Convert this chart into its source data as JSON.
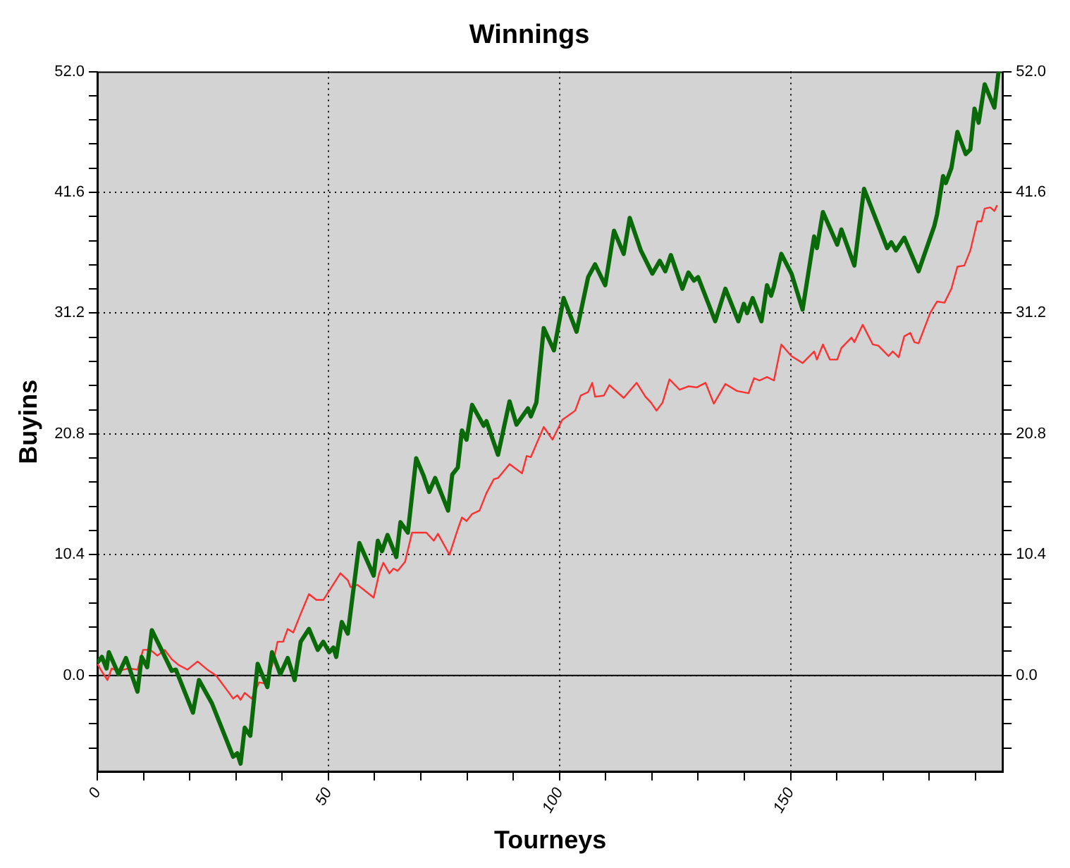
{
  "chart_data": {
    "type": "line",
    "title": "Winnings",
    "xlabel": "Tourneys",
    "ylabel": "Buyins",
    "xlim": [
      0,
      196
    ],
    "xticks": [
      0,
      {
        "value": 10,
        "label": null
      },
      {
        "value": 20,
        "label": null
      },
      {
        "value": 30,
        "label": null
      },
      {
        "value": 40,
        "label": null
      },
      50,
      {
        "value": 60,
        "label": null
      },
      {
        "value": 70,
        "label": null
      },
      {
        "value": 80,
        "label": null
      },
      {
        "value": 90,
        "label": null
      },
      100,
      {
        "value": 110,
        "label": null
      },
      {
        "value": 120,
        "label": null
      },
      {
        "value": 130,
        "label": null
      },
      {
        "value": 140,
        "label": null
      },
      150,
      {
        "value": 160,
        "label": null
      },
      {
        "value": 170,
        "label": null
      },
      {
        "value": 180,
        "label": null
      },
      {
        "value": 190,
        "label": null
      }
    ],
    "ylim": [
      -8.32,
      52
    ],
    "yticks": [
      {
        "value": -6.24,
        "label": null
      },
      {
        "value": -4.16,
        "label": null
      },
      {
        "value": -2.08,
        "label": null
      },
      {
        "value": 0,
        "label": "0.0"
      },
      {
        "value": 2.08,
        "label": null
      },
      {
        "value": 4.16,
        "label": null
      },
      {
        "value": 6.24,
        "label": null
      },
      {
        "value": 8.32,
        "label": null
      },
      10.4,
      {
        "value": 12.48,
        "label": null
      },
      {
        "value": 14.56,
        "label": null
      },
      {
        "value": 16.64,
        "label": null
      },
      {
        "value": 18.72,
        "label": null
      },
      20.8,
      {
        "value": 22.88,
        "label": null
      },
      {
        "value": 24.96,
        "label": null
      },
      {
        "value": 27.04,
        "label": null
      },
      {
        "value": 29.12,
        "label": null
      },
      31.2,
      {
        "value": 33.28,
        "label": null
      },
      {
        "value": 35.36,
        "label": null
      },
      {
        "value": 37.44,
        "label": null
      },
      {
        "value": 39.52,
        "label": null
      },
      41.6,
      {
        "value": 43.68,
        "label": null
      },
      {
        "value": 45.76,
        "label": null
      },
      {
        "value": 47.84,
        "label": null
      },
      {
        "value": 49.92,
        "label": null
      },
      {
        "value": 52,
        "label": "52.0"
      }
    ],
    "y2lim": [
      -8.32,
      52
    ],
    "y2ticks": [
      {
        "value": -6.24,
        "label": null
      },
      {
        "value": -4.16,
        "label": null
      },
      {
        "value": -2.08,
        "label": null
      },
      {
        "value": 0,
        "label": "0.0"
      },
      {
        "value": 2.08,
        "label": null
      },
      {
        "value": 4.16,
        "label": null
      },
      {
        "value": 6.24,
        "label": null
      },
      {
        "value": 8.32,
        "label": null
      },
      10.4,
      {
        "value": 12.48,
        "label": null
      },
      {
        "value": 14.56,
        "label": null
      },
      {
        "value": 16.64,
        "label": null
      },
      {
        "value": 18.72,
        "label": null
      },
      20.8,
      {
        "value": 22.88,
        "label": null
      },
      {
        "value": 24.96,
        "label": null
      },
      {
        "value": 27.04,
        "label": null
      },
      {
        "value": 29.12,
        "label": null
      },
      31.2,
      {
        "value": 33.28,
        "label": null
      },
      {
        "value": 35.36,
        "label": null
      },
      {
        "value": 37.44,
        "label": null
      },
      {
        "value": 39.52,
        "label": null
      },
      41.6,
      {
        "value": 43.68,
        "label": null
      },
      {
        "value": 45.76,
        "label": null
      },
      {
        "value": 47.84,
        "label": null
      },
      {
        "value": 49.92,
        "label": null
      },
      {
        "value": 52,
        "label": "52.0"
      }
    ],
    "grid": true,
    "marker": "none",
    "line_style": "solid",
    "ref_lines": [
      {
        "axis": "y",
        "value": 0,
        "color": "#000000"
      }
    ],
    "series": [
      {
        "color": "#0a6a0a",
        "x": [
          0,
          1,
          2,
          2.5,
          4.6,
          6.2,
          8.7,
          9.6,
          10.8,
          11.8,
          13.9,
          16.1,
          17,
          20.7,
          22,
          24.8,
          29.4,
          30.3,
          31,
          31.9,
          33.1,
          34.7,
          36.8,
          37.8,
          39.6,
          41.2,
          42.7,
          44,
          45.8,
          47.7,
          48.9,
          50.2,
          51.1,
          51.7,
          52.9,
          54.2,
          56.7,
          59.8,
          60.7,
          61.6,
          62.8,
          64.7,
          65.6,
          67.2,
          69,
          70.6,
          71.8,
          73.1,
          75.9,
          76.8,
          78,
          78.9,
          79.9,
          81.1,
          83.6,
          84.2,
          86.7,
          89.2,
          90.7,
          93.2,
          93.8,
          95,
          96.6,
          98.8,
          100.9,
          103.7,
          106.2,
          107.7,
          109.9,
          111.8,
          113.9,
          115.2,
          117.6,
          120.1,
          121.7,
          122.9,
          124.1,
          126.6,
          127.9,
          129.1,
          130,
          133.7,
          135.9,
          138.7,
          139.9,
          140.6,
          141.8,
          143.7,
          144.9,
          145.8,
          146.4,
          148,
          150.2,
          152.6,
          155.1,
          155.7,
          157,
          160.1,
          161,
          163.8,
          165.9,
          170.9,
          171.8,
          172.8,
          174.6,
          177.7,
          181.1,
          181.7,
          183,
          183.6,
          184.8,
          186.1,
          187.9,
          188.9,
          189.8,
          190.7,
          192,
          194.1,
          195
        ],
        "values": [
          1.1,
          1.6,
          0.6,
          2.0,
          0.1,
          1.5,
          -1.4,
          1.6,
          0.7,
          3.9,
          2.2,
          0.4,
          0.5,
          -3.2,
          -0.4,
          -2.4,
          -7.0,
          -6.7,
          -7.6,
          -4.5,
          -5.2,
          1.0,
          -1.0,
          2.0,
          0.1,
          1.5,
          -0.4,
          2.9,
          4.0,
          2.2,
          2.9,
          2.0,
          2.4,
          1.6,
          4.6,
          3.6,
          11.4,
          8.6,
          11.6,
          10.7,
          12.1,
          10.2,
          13.2,
          12.3,
          18.7,
          17.2,
          15.8,
          17.0,
          14.2,
          17.3,
          17.9,
          21.1,
          20.3,
          23.3,
          21.5,
          21.9,
          19.0,
          23.6,
          21.6,
          23.0,
          22.3,
          23.5,
          29.9,
          28.0,
          32.5,
          29.6,
          34.3,
          35.4,
          33.6,
          38.3,
          36.3,
          39.4,
          36.6,
          34.6,
          35.7,
          34.8,
          36.2,
          33.3,
          34.7,
          34.0,
          34.3,
          30.5,
          33.3,
          30.5,
          32.0,
          31.2,
          32.5,
          30.5,
          33.6,
          32.7,
          33.5,
          36.3,
          34.6,
          31.5,
          37.8,
          36.8,
          39.9,
          37.1,
          38.4,
          35.3,
          41.9,
          36.8,
          37.3,
          36.6,
          37.7,
          34.8,
          38.7,
          39.7,
          43.0,
          42.4,
          43.7,
          46.8,
          44.9,
          45.3,
          48.8,
          47.6,
          50.9,
          48.9,
          52
        ]
      },
      {
        "color": "#ff3030",
        "x": [
          0,
          0.9,
          2.2,
          3.1,
          4.6,
          6.8,
          8.7,
          9.9,
          11.5,
          13,
          14.6,
          16.1,
          17.6,
          19.5,
          21.7,
          23.8,
          25.7,
          28.5,
          29.4,
          30.3,
          31,
          31.9,
          33.4,
          35,
          36.5,
          38.1,
          39,
          40.2,
          41.2,
          42.4,
          44,
          45.8,
          47.4,
          48.9,
          50.2,
          52.6,
          54.2,
          54.8,
          56.3,
          59.8,
          61,
          61.9,
          63.2,
          64.1,
          65,
          66.6,
          68.1,
          71.2,
          72.8,
          73.7,
          76.2,
          78,
          78.9,
          79.9,
          81.1,
          82.7,
          84.2,
          85.8,
          86.7,
          89.2,
          91.9,
          92.9,
          93.8,
          96.6,
          98.5,
          100.6,
          103.4,
          104.6,
          106.2,
          107.1,
          107.7,
          109.6,
          110.8,
          113.9,
          116.7,
          118.6,
          119.8,
          121,
          122.3,
          123.8,
          126,
          127.9,
          129.7,
          131.6,
          133.4,
          135.9,
          138.4,
          140.9,
          142.1,
          143.3,
          144.9,
          146.4,
          148,
          150.2,
          152.6,
          155.1,
          155.7,
          157,
          158.5,
          160.1,
          161,
          163.2,
          163.8,
          165.6,
          167.8,
          169,
          171.2,
          172.1,
          173.4,
          174.6,
          175.9,
          176.8,
          177.7,
          180.2,
          181.7,
          183.3,
          184.8,
          186.1,
          187.6,
          188.9,
          190.4,
          191.3,
          192,
          193.2,
          194.1,
          194.7
        ],
        "values": [
          1.0,
          0.4,
          -0.4,
          0.6,
          0.4,
          0.6,
          0.5,
          2.2,
          2.2,
          1.7,
          2.2,
          1.4,
          0.9,
          0.5,
          1.2,
          0.5,
          0,
          -1.5,
          -2.0,
          -1.7,
          -2.1,
          -1.5,
          -2.0,
          -0.6,
          -0.7,
          1.2,
          2.9,
          2.9,
          4.0,
          3.7,
          5.3,
          7.0,
          6.5,
          6.5,
          7.3,
          8.8,
          8.2,
          7.6,
          7.8,
          6.7,
          8.8,
          9.7,
          8.8,
          9.2,
          9.0,
          9.8,
          12.3,
          12.3,
          11.6,
          12.2,
          10.4,
          12.6,
          13.6,
          13.3,
          13.9,
          14.2,
          15.7,
          16.9,
          17.0,
          18.2,
          17.4,
          18.9,
          18.8,
          21.4,
          20.3,
          22.0,
          22.8,
          24.1,
          24.4,
          25.2,
          24.0,
          24.1,
          25.0,
          23.9,
          25.2,
          24.0,
          23.5,
          22.8,
          23.5,
          25.5,
          24.6,
          24.9,
          24.8,
          25.2,
          23.4,
          25.1,
          24.5,
          24.3,
          25.6,
          25.4,
          25.7,
          25.4,
          28.5,
          27.5,
          26.9,
          27.9,
          27.2,
          28.5,
          27.2,
          27.2,
          28.2,
          29.1,
          28.7,
          30.2,
          28.5,
          28.4,
          27.5,
          27.9,
          27.4,
          29.2,
          29.5,
          28.7,
          28.6,
          31.2,
          32.2,
          32.1,
          33.3,
          35.2,
          35.3,
          36.6,
          39.1,
          39.1,
          40.2,
          40.3,
          40.0,
          40.5
        ]
      }
    ]
  }
}
